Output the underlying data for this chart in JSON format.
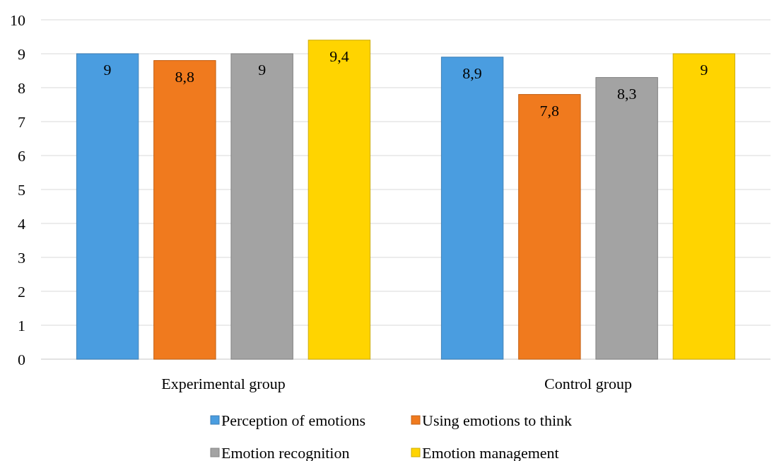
{
  "chart_data": {
    "type": "bar",
    "categories": [
      "Experimental group",
      "Control group"
    ],
    "series": [
      {
        "name": "Perception of emotions",
        "color": "#4a9de0",
        "values": [
          9,
          8.9
        ],
        "value_labels": [
          "9",
          "8,9"
        ]
      },
      {
        "name": "Using emotions to think",
        "color": "#f07a1e",
        "values": [
          8.8,
          7.8
        ],
        "value_labels": [
          "8,8",
          "7,8"
        ]
      },
      {
        "name": "Emotion recognition",
        "color": "#a3a3a3",
        "values": [
          9,
          8.3
        ],
        "value_labels": [
          "9",
          "8,3"
        ]
      },
      {
        "name": "Emotion management",
        "color": "#ffd400",
        "values": [
          9.4,
          9
        ],
        "value_labels": [
          "9,4",
          "9"
        ]
      }
    ],
    "ylim": [
      0,
      10
    ],
    "yticks": [
      0,
      1,
      2,
      3,
      4,
      5,
      6,
      7,
      8,
      9,
      10
    ],
    "grid": "y",
    "legend": "bottom"
  }
}
